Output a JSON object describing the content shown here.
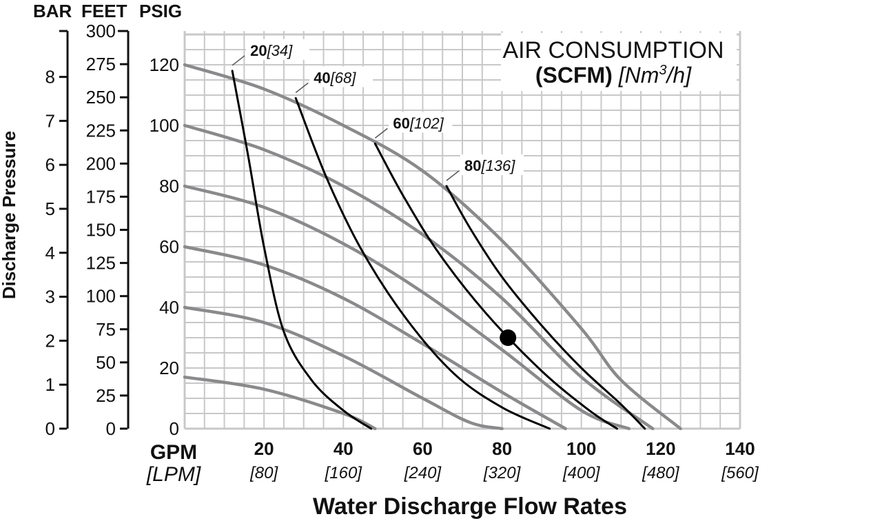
{
  "chart_data": {
    "type": "line",
    "title": {
      "line1": "AIR CONSUMPTION",
      "line2_bold": "(SCFM)",
      "line2_italic_prefix": "[Nm",
      "line2_sup": "3",
      "line2_italic_suffix": "/h]"
    },
    "ylabel": "Discharge Pressure",
    "xlabel": "Water Discharge Flow Rates",
    "x_unit_primary": "GPM",
    "x_unit_secondary": "[LPM]",
    "y_unit_headers": [
      "BAR",
      "FEET",
      "PSIG"
    ],
    "xlim": [
      0,
      140
    ],
    "ylim": [
      0,
      130
    ],
    "x_ticks": [
      {
        "value": 20,
        "gpm": "20",
        "lpm": "[80]"
      },
      {
        "value": 40,
        "gpm": "40",
        "lpm": "[160]"
      },
      {
        "value": 60,
        "gpm": "60",
        "lpm": "[240]"
      },
      {
        "value": 80,
        "gpm": "80",
        "lpm": "[320]"
      },
      {
        "value": 100,
        "gpm": "100",
        "lpm": "[400]"
      },
      {
        "value": 120,
        "gpm": "120",
        "lpm": "[480]"
      },
      {
        "value": 140,
        "gpm": "140",
        "lpm": "[560]"
      }
    ],
    "psig_ticks": [
      "0",
      "20",
      "40",
      "60",
      "80",
      "100",
      "120"
    ],
    "feet_ticks": [
      "0",
      "25",
      "50",
      "75",
      "100",
      "125",
      "150",
      "175",
      "200",
      "225",
      "250",
      "275",
      "300"
    ],
    "bar_ticks": [
      "0",
      "1",
      "2",
      "3",
      "4",
      "5",
      "6",
      "7",
      "8"
    ],
    "grid": true,
    "colors": {
      "pressure_curves": "#8a8a8c",
      "air_curves": "#000000",
      "grid": "#c8c8ca"
    },
    "pressure_curves": [
      {
        "points": [
          [
            0,
            120
          ],
          [
            20,
            112
          ],
          [
            40,
            100
          ],
          [
            60,
            85
          ],
          [
            80,
            62
          ],
          [
            100,
            33
          ],
          [
            110,
            16
          ],
          [
            125,
            0
          ]
        ]
      },
      {
        "points": [
          [
            0,
            100
          ],
          [
            20,
            92
          ],
          [
            40,
            80
          ],
          [
            60,
            64
          ],
          [
            80,
            43
          ],
          [
            100,
            17
          ],
          [
            118,
            0
          ]
        ]
      },
      {
        "points": [
          [
            0,
            80
          ],
          [
            20,
            73
          ],
          [
            40,
            61
          ],
          [
            60,
            45
          ],
          [
            80,
            26
          ],
          [
            100,
            6
          ],
          [
            112,
            0
          ]
        ]
      },
      {
        "points": [
          [
            0,
            60
          ],
          [
            20,
            54
          ],
          [
            40,
            43
          ],
          [
            60,
            28
          ],
          [
            80,
            12
          ],
          [
            96,
            0
          ]
        ]
      },
      {
        "points": [
          [
            0,
            40
          ],
          [
            20,
            35
          ],
          [
            40,
            24
          ],
          [
            60,
            10
          ],
          [
            72,
            2
          ],
          [
            80,
            0
          ]
        ]
      },
      {
        "points": [
          [
            0,
            17
          ],
          [
            20,
            13
          ],
          [
            40,
            5
          ],
          [
            48,
            0
          ]
        ]
      }
    ],
    "air_curves": [
      {
        "scfm": "20",
        "nm3h": "[34]",
        "points": [
          [
            12,
            118
          ],
          [
            16,
            90
          ],
          [
            20,
            60
          ],
          [
            25,
            32
          ],
          [
            32,
            16
          ],
          [
            40,
            6
          ],
          [
            47,
            0
          ]
        ]
      },
      {
        "scfm": "40",
        "nm3h": "[68]",
        "points": [
          [
            28,
            109
          ],
          [
            36,
            82
          ],
          [
            45,
            58
          ],
          [
            56,
            36
          ],
          [
            68,
            18
          ],
          [
            80,
            7
          ],
          [
            92,
            0
          ]
        ]
      },
      {
        "scfm": "60",
        "nm3h": "[102]",
        "points": [
          [
            48,
            94
          ],
          [
            55,
            77
          ],
          [
            64,
            58
          ],
          [
            76,
            38
          ],
          [
            90,
            19
          ],
          [
            102,
            6
          ],
          [
            109,
            0
          ]
        ]
      },
      {
        "scfm": "80",
        "nm3h": "[136]",
        "points": [
          [
            66,
            80
          ],
          [
            72,
            66
          ],
          [
            80,
            50
          ],
          [
            90,
            34
          ],
          [
            100,
            20
          ],
          [
            110,
            8
          ],
          [
            116,
            0
          ]
        ]
      }
    ],
    "operating_point": {
      "x": 81.5,
      "y": 30
    }
  }
}
